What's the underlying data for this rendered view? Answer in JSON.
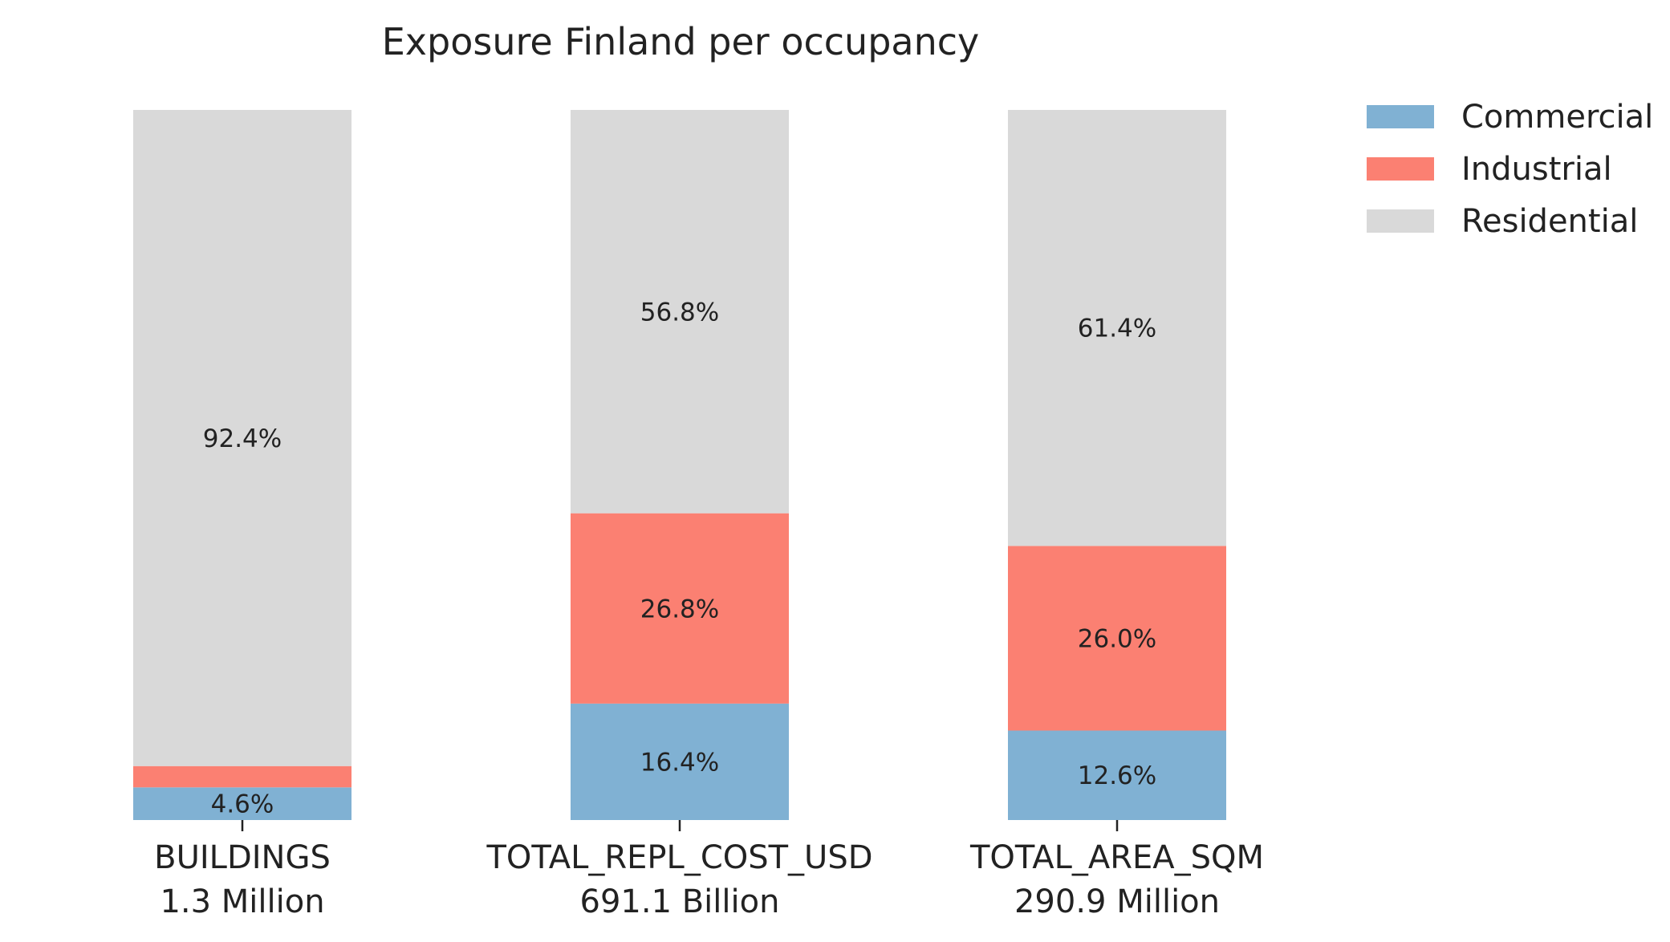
{
  "chart_data": {
    "type": "bar",
    "stacked": true,
    "title": "Exposure Finland per occupancy",
    "xlabel": "",
    "ylabel": "",
    "ylim": [
      0,
      100
    ],
    "grid": false,
    "legend_position": "top-right",
    "categories": [
      "BUILDINGS",
      "TOTAL_REPL_COST_USD",
      "TOTAL_AREA_SQM"
    ],
    "category_totals": [
      "1.3 Million",
      "691.1 Billion",
      "290.9 Million"
    ],
    "series": [
      {
        "name": "Commercial",
        "color": "#80b1d3",
        "values": [
          4.6,
          16.4,
          12.6
        ],
        "labels": [
          "4.6%",
          "16.4%",
          "12.6%"
        ]
      },
      {
        "name": "Industrial",
        "color": "#fb8072",
        "values": [
          3.0,
          26.8,
          26.0
        ],
        "labels": [
          "",
          "26.8%",
          "26.0%"
        ]
      },
      {
        "name": "Residential",
        "color": "#d9d9d9",
        "values": [
          92.4,
          56.8,
          61.4
        ],
        "labels": [
          "92.4%",
          "56.8%",
          "61.4%"
        ]
      }
    ]
  }
}
